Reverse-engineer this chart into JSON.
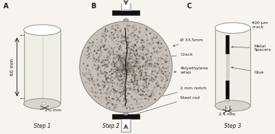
{
  "bg_color": "#f7f4f0",
  "panel_labels": [
    "A",
    "B",
    "C"
  ],
  "step_labels": [
    "Step 1",
    "Step 2",
    "Step 3"
  ],
  "annotations_B": {
    "diameter": "Ø 33.5mm",
    "crack": "Crack",
    "wrap": "Polyethylene\nwrap",
    "notch": "2 mm notch",
    "rod": "Steel rod"
  },
  "annotations_C": {
    "crack_size": "400 μm\ncrack",
    "spacers": "Metal\nSpacers",
    "glue": "Glue",
    "bottom": "2.4 mm"
  },
  "annotations_A": {
    "height": "60 mm",
    "bottom": "2.0 mm"
  },
  "text_color": "#1a1a1a",
  "cyl_face": "#f0ece6",
  "cyl_edge": "#999990",
  "cyl_top": "#ffffff",
  "cyl_side": "#d8d4ce",
  "disk_base": "#c8c0b8",
  "black_bar": "#111111",
  "arrow_color": "#555555",
  "rod_fill": "#e8e8e8",
  "spacer_color": "#0a0a0a",
  "glue_color": "#dedad4"
}
